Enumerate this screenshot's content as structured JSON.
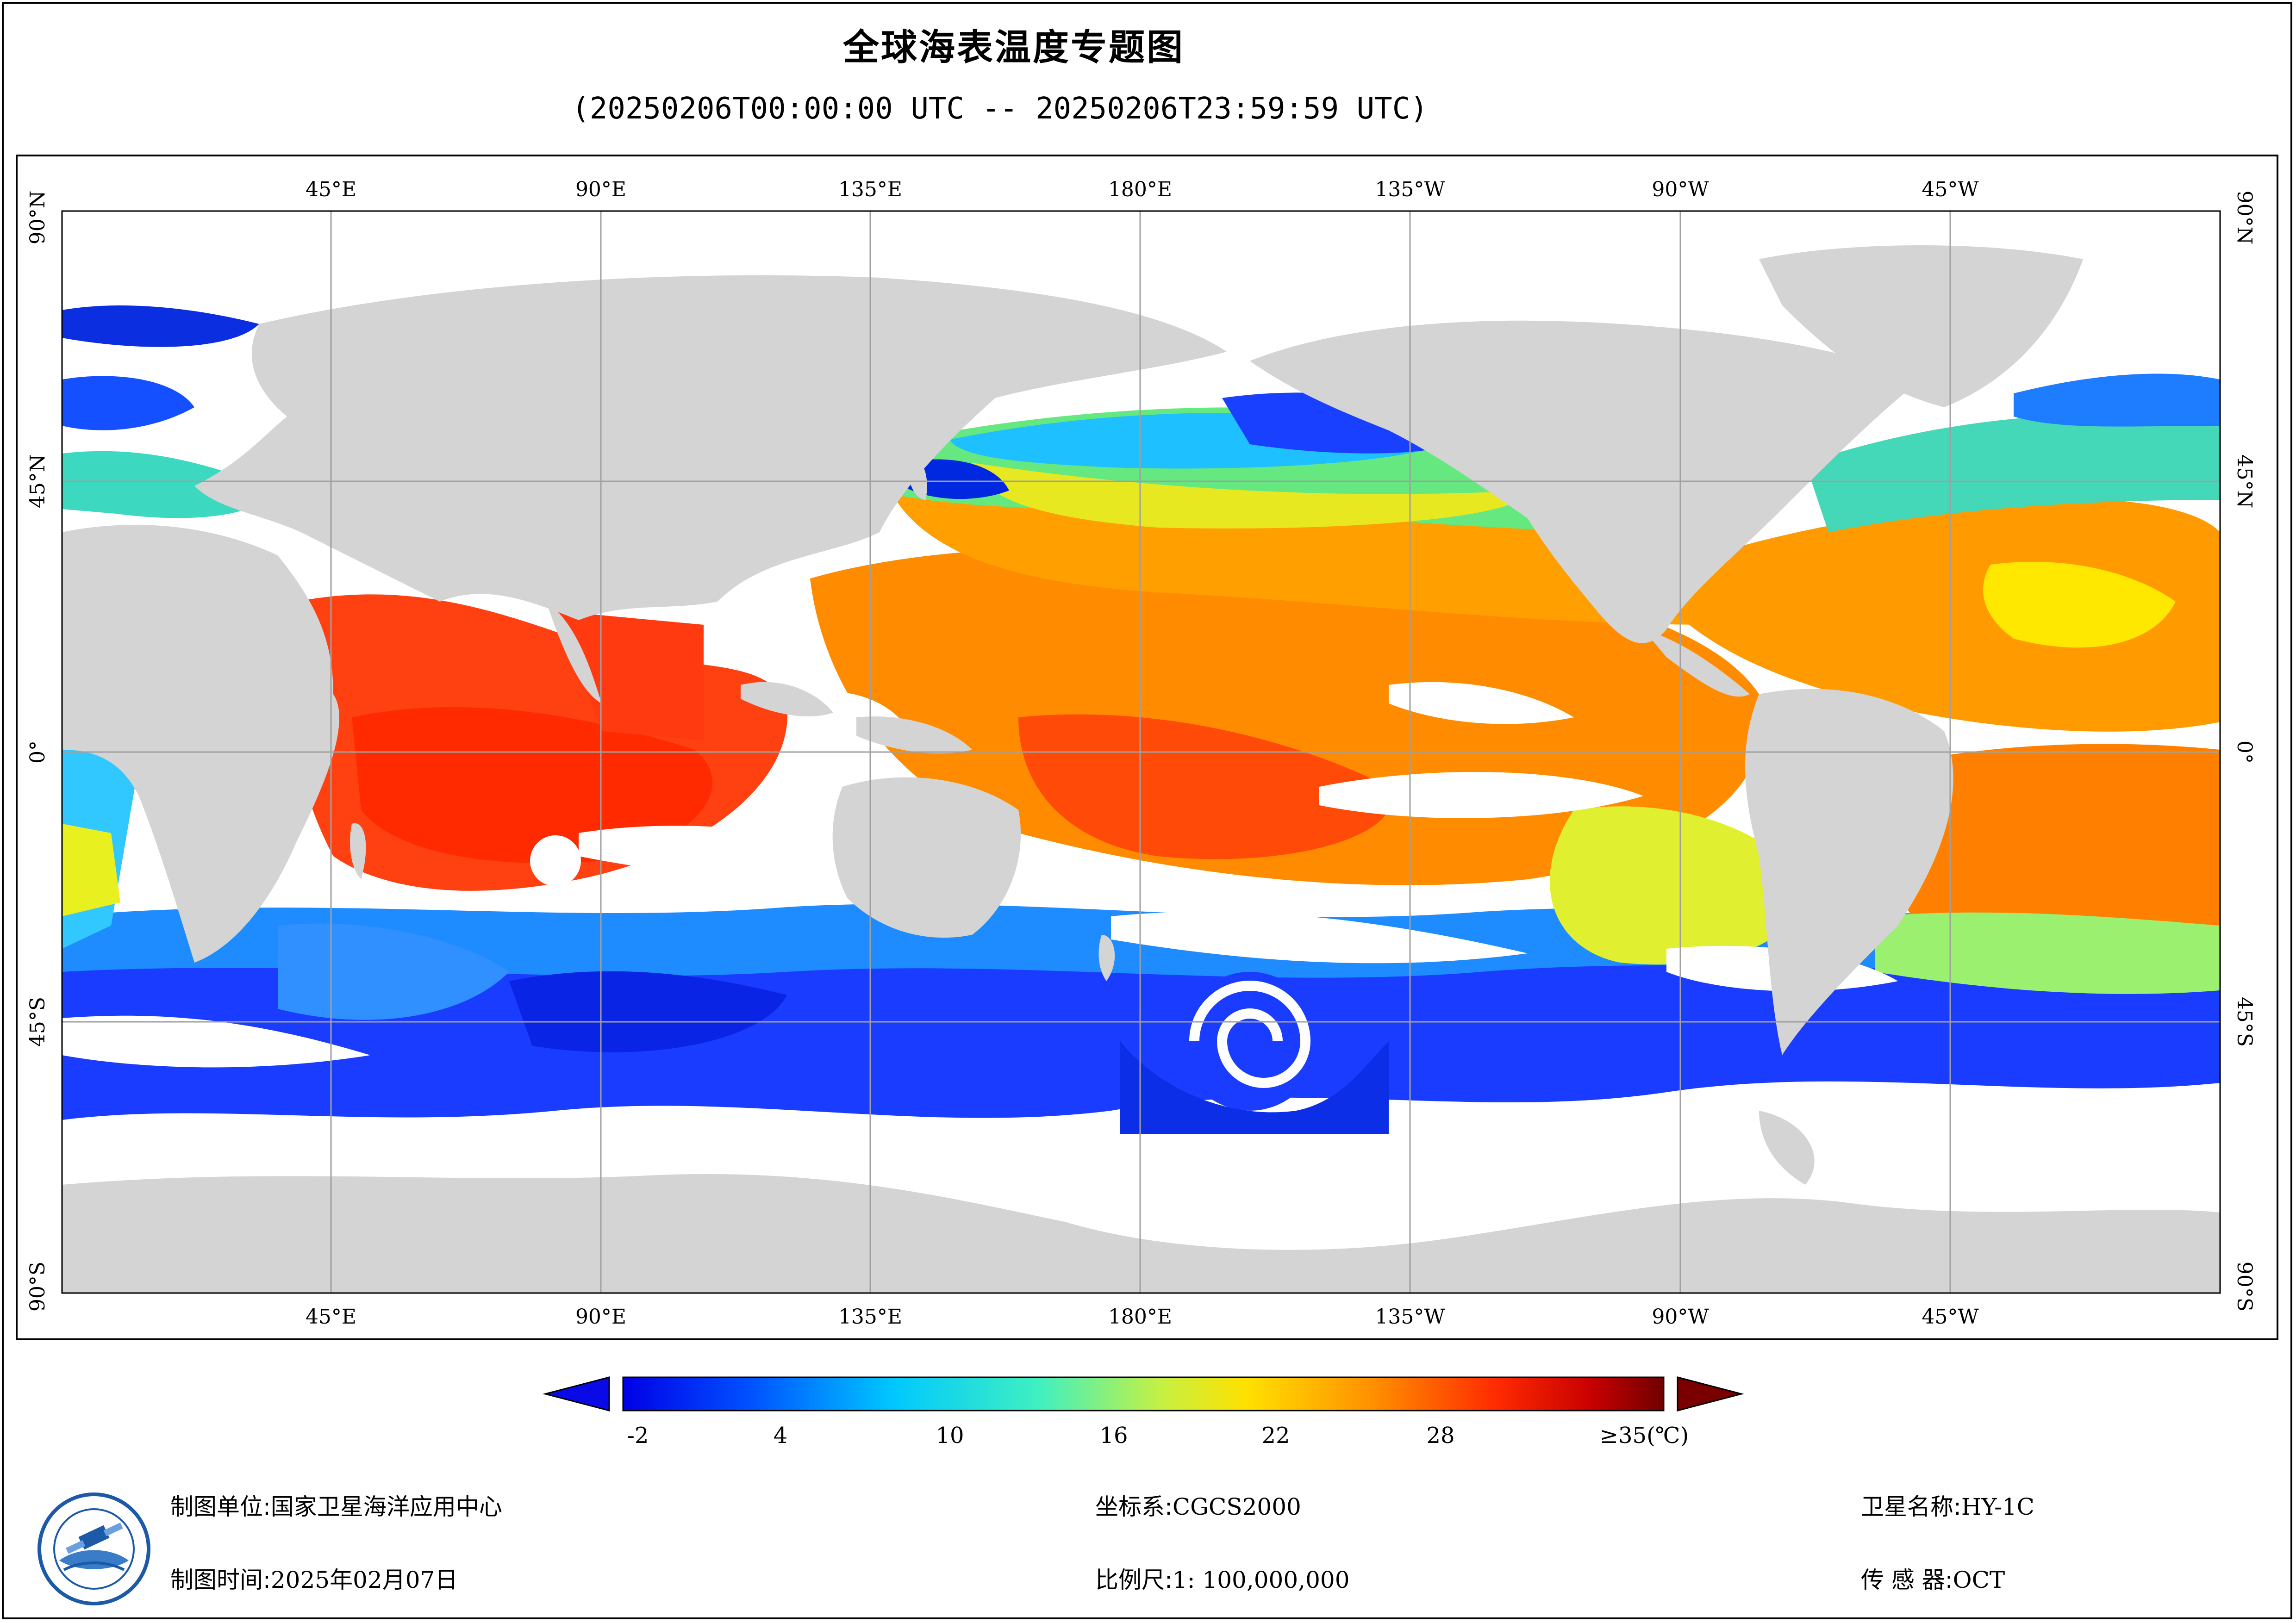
{
  "title": "全球海表温度专题图",
  "subtitle": "(20250206T00:00:00 UTC -- 20250206T23:59:59 UTC)",
  "map": {
    "top_lon_labels": [
      "45°E",
      "90°E",
      "135°E",
      "180°E",
      "135°W",
      "90°W",
      "45°W"
    ],
    "bottom_lon_labels": [
      "45°E",
      "90°E",
      "135°E",
      "180°E",
      "135°W",
      "90°W",
      "45°W"
    ],
    "left_lat_labels": [
      "90°N",
      "45°N",
      "0°",
      "45°S",
      "90°S"
    ],
    "right_lat_labels": [
      "90°N",
      "45°N",
      "0°",
      "45°S",
      "90°S"
    ],
    "colors": {
      "land": "#d4d4d4",
      "cloud": "#ffffff",
      "grid": "#a0a0a0"
    }
  },
  "colorbar": {
    "labels": [
      "-2",
      "4",
      "10",
      "16",
      "22",
      "28",
      "≥35(℃)"
    ],
    "min_arrow_color": "#0a0ae6",
    "max_arrow_color": "#7a0000"
  },
  "footer": {
    "unit_label": "制图单位:",
    "unit_value": "国家卫星海洋应用中心",
    "time_label": "制图时间:",
    "time_value": "2025年02月07日",
    "crs_label": "坐标系:",
    "crs_value": "CGCS2000",
    "scale_label": "比例尺:",
    "scale_value": "1: 100,000,000",
    "satellite_label": "卫星名称:",
    "satellite_value": "HY-1C",
    "sensor_label": "传 感 器:",
    "sensor_value": "OCT"
  },
  "logo": {
    "icon": "nsoas-logo-icon"
  }
}
